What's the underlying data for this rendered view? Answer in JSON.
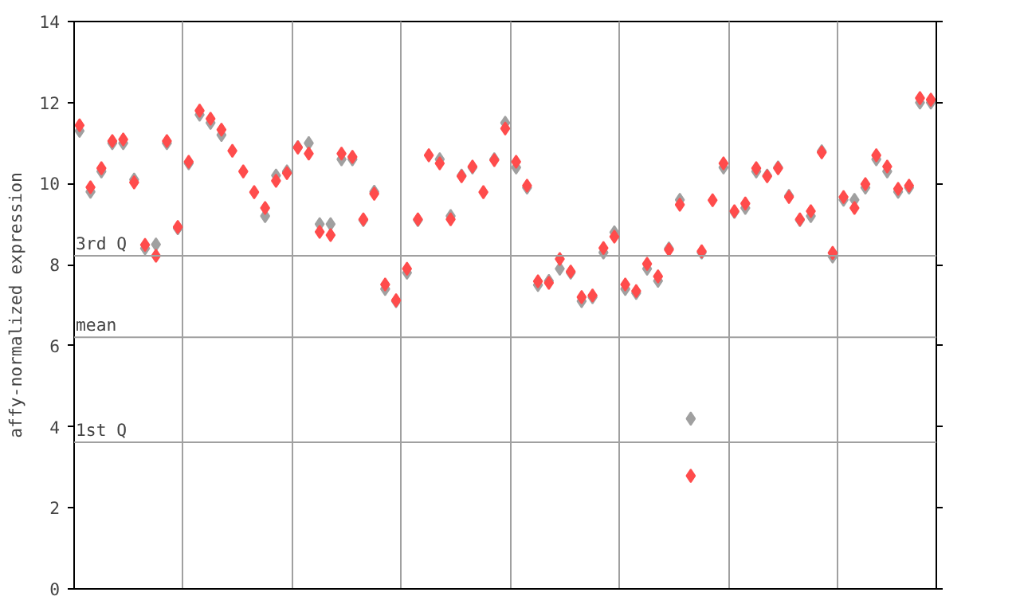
{
  "chart_data": {
    "type": "scatter",
    "ylabel": "affy-normalized expression",
    "categories": [
      null,
      null,
      null,
      null,
      null,
      null,
      null,
      null,
      null,
      null,
      null,
      null,
      null,
      null,
      null,
      null,
      null,
      null,
      null,
      null,
      null,
      null,
      null,
      null,
      null,
      null,
      null,
      null,
      null,
      null,
      null,
      null,
      null,
      null,
      null,
      null,
      null,
      null,
      null,
      null,
      null,
      null,
      null,
      null,
      null,
      null,
      null,
      null,
      null,
      null,
      null,
      null,
      null,
      null,
      null,
      null,
      null,
      null,
      null,
      null,
      null,
      null,
      null,
      null,
      null,
      null,
      null,
      null,
      null,
      null,
      null,
      null,
      null,
      null,
      null,
      null,
      null,
      null,
      null
    ],
    "series": [
      {
        "color": "#a0a0a0",
        "values": [
          11.3,
          9.8,
          10.3,
          11.0,
          11.0,
          10.1,
          8.4,
          8.5,
          11.0,
          8.9,
          10.5,
          11.7,
          11.5,
          11.2,
          null,
          null,
          null,
          9.2,
          10.2,
          10.3,
          10.9,
          11.0,
          9.0,
          9.0,
          10.6,
          10.6,
          9.1,
          9.8,
          7.4,
          7.1,
          7.8,
          9.1,
          null,
          10.6,
          9.2,
          10.2,
          10.4,
          null,
          10.6,
          11.5,
          10.4,
          9.9,
          7.5,
          7.6,
          7.9,
          7.8,
          7.1,
          7.2,
          8.3,
          8.8,
          7.4,
          7.3,
          7.9,
          7.6,
          8.4,
          9.6,
          4.2,
          8.3,
          null,
          10.4,
          9.3,
          9.4,
          10.3,
          10.2,
          10.4,
          9.7,
          9.1,
          9.2,
          10.8,
          8.2,
          9.6,
          9.6,
          9.9,
          10.6,
          10.3,
          9.8,
          9.9,
          12.0,
          12.0
        ]
      },
      {
        "color": "#ff4c4c",
        "values": [
          11.44,
          9.91,
          10.38,
          11.05,
          11.09,
          10.03,
          8.49,
          8.22,
          11.05,
          8.93,
          10.54,
          11.8,
          11.6,
          11.33,
          10.81,
          10.3,
          9.79,
          9.4,
          10.07,
          10.26,
          10.89,
          10.74,
          8.81,
          8.73,
          10.74,
          10.66,
          9.12,
          9.75,
          7.51,
          7.12,
          7.9,
          9.12,
          10.7,
          10.5,
          9.12,
          10.18,
          10.42,
          9.79,
          10.58,
          11.36,
          10.54,
          9.95,
          7.59,
          7.55,
          8.14,
          7.83,
          7.2,
          7.24,
          8.41,
          8.69,
          7.51,
          7.35,
          8.02,
          7.71,
          8.37,
          9.48,
          2.79,
          8.33,
          9.59,
          10.5,
          9.32,
          9.51,
          10.38,
          10.18,
          10.38,
          9.67,
          9.12,
          9.32,
          10.77,
          8.29,
          9.67,
          9.4,
          9.99,
          10.7,
          10.42,
          9.87,
          9.95,
          12.11,
          12.07
        ]
      }
    ],
    "marker": "diamond",
    "ylim": [
      0,
      14
    ],
    "yticks": [
      0,
      2,
      4,
      6,
      8,
      10,
      12,
      14
    ],
    "tick_labels": "y",
    "grid": "x",
    "ref_lines": [
      {
        "axis": "y",
        "value": 8.22,
        "label": "3rd Q",
        "color": "#a0a0a0"
      },
      {
        "axis": "y",
        "value": 6.21,
        "label": "mean",
        "color": "#a0a0a0"
      },
      {
        "axis": "y",
        "value": 3.62,
        "label": "1st Q",
        "color": "#a0a0a0"
      }
    ]
  }
}
